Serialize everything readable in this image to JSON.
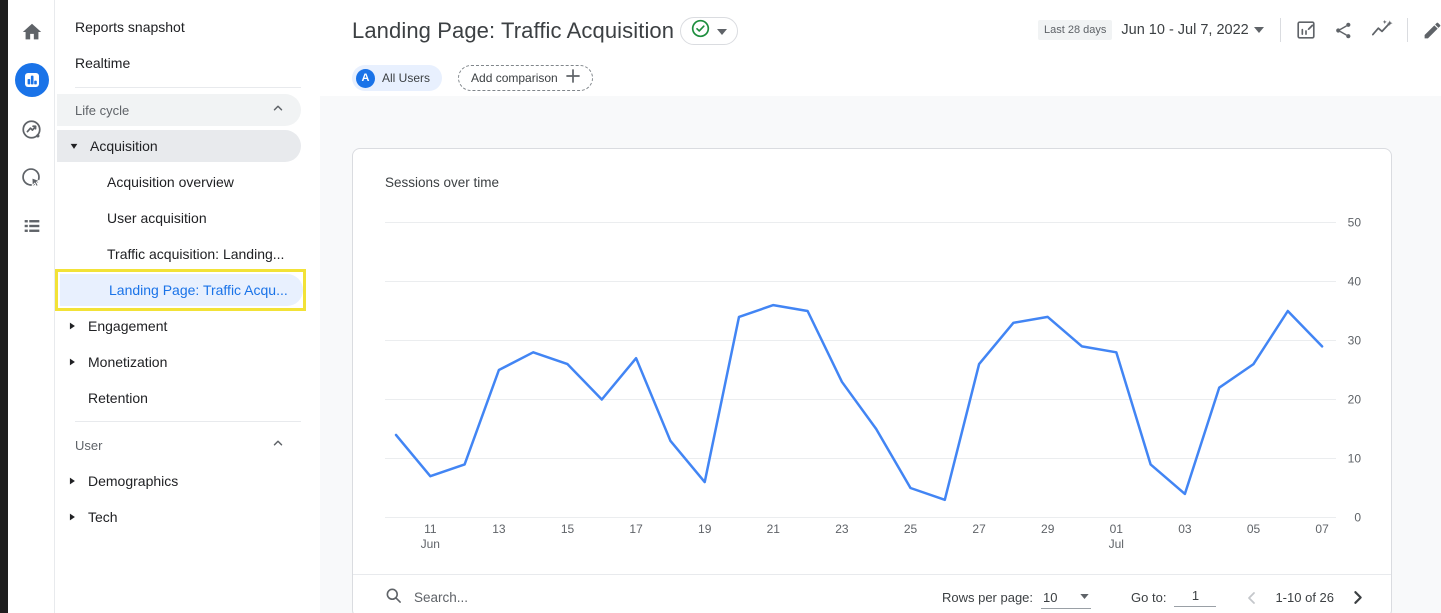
{
  "rail": {
    "active_color": "#1a73e8",
    "items": [
      {
        "icon": "home-icon"
      },
      {
        "icon": "reports-icon",
        "active": true
      },
      {
        "icon": "explore-icon"
      },
      {
        "icon": "advertising-icon"
      },
      {
        "icon": "library-icon"
      }
    ]
  },
  "sidebar": {
    "top_items": [
      "Reports snapshot",
      "Realtime"
    ],
    "sections": [
      {
        "header": "Life cycle",
        "items": [
          {
            "label": "Acquisition",
            "expanded": true,
            "children": [
              "Acquisition overview",
              "User acquisition",
              "Traffic acquisition: Landing...",
              "Landing Page: Traffic Acqu..."
            ]
          },
          {
            "label": "Engagement"
          },
          {
            "label": "Monetization"
          },
          {
            "label": "Retention"
          }
        ]
      },
      {
        "header": "User",
        "items": [
          {
            "label": "Demographics"
          },
          {
            "label": "Tech"
          }
        ]
      }
    ],
    "selected_item": "Landing Page: Traffic Acqu...",
    "selected_color": "#1a73e8",
    "highlight_color": "#f2e237"
  },
  "header": {
    "title": "Landing Page: Traffic Acquisition",
    "validity_icon": "check-circle-icon",
    "date_range_label": "Last 28 days",
    "date_range": "Jun 10 - Jul 7, 2022",
    "action_icons": [
      "customize-report-icon",
      "share-icon",
      "insights-icon",
      "edit-icon"
    ]
  },
  "chips": {
    "avatar_letter": "A",
    "all_users": "All Users",
    "add_comparison": "Add comparison"
  },
  "chart_data": {
    "type": "line",
    "title": "Sessions over time",
    "x": [
      "Jun 10",
      "Jun 11",
      "Jun 12",
      "Jun 13",
      "Jun 14",
      "Jun 15",
      "Jun 16",
      "Jun 17",
      "Jun 18",
      "Jun 19",
      "Jun 20",
      "Jun 21",
      "Jun 22",
      "Jun 23",
      "Jun 24",
      "Jun 25",
      "Jun 26",
      "Jun 27",
      "Jun 28",
      "Jun 29",
      "Jun 30",
      "Jul 1",
      "Jul 2",
      "Jul 3",
      "Jul 4",
      "Jul 5",
      "Jul 6",
      "Jul 7"
    ],
    "series": [
      {
        "name": "Sessions",
        "color": "#4285f4",
        "values": [
          14,
          7,
          9,
          25,
          28,
          26,
          20,
          27,
          13,
          6,
          34,
          36,
          35,
          23,
          15,
          5,
          3,
          26,
          33,
          34,
          29,
          28,
          9,
          4,
          22,
          26,
          35,
          29
        ]
      }
    ],
    "x_ticks": [
      {
        "i": 1,
        "label": "11",
        "sub": "Jun"
      },
      {
        "i": 3,
        "label": "13"
      },
      {
        "i": 5,
        "label": "15"
      },
      {
        "i": 7,
        "label": "17"
      },
      {
        "i": 9,
        "label": "19"
      },
      {
        "i": 11,
        "label": "21"
      },
      {
        "i": 13,
        "label": "23"
      },
      {
        "i": 15,
        "label": "25"
      },
      {
        "i": 17,
        "label": "27"
      },
      {
        "i": 19,
        "label": "29"
      },
      {
        "i": 21,
        "label": "01",
        "sub": "Jul"
      },
      {
        "i": 23,
        "label": "03"
      },
      {
        "i": 25,
        "label": "05"
      },
      {
        "i": 27,
        "label": "07"
      }
    ],
    "y_ticks": [
      0,
      10,
      20,
      30,
      40,
      50
    ],
    "ylim": [
      0,
      50
    ],
    "y_axis_side": "right",
    "grid": true,
    "legend": "none",
    "gridline_color": "#ebedef",
    "tick_color": "#5f6368"
  },
  "toolbar": {
    "search_placeholder": "Search...",
    "rows_per_page_label": "Rows per page:",
    "rows_per_page_value": "10",
    "goto_label": "Go to:",
    "goto_value": "1",
    "pagination": "1-10 of 26"
  }
}
